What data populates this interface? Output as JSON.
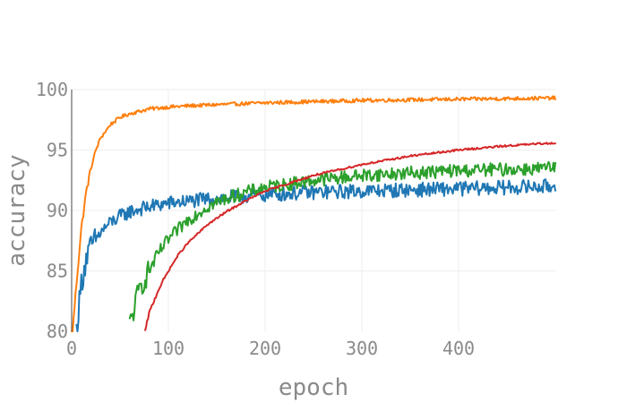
{
  "chart_data": {
    "type": "line",
    "title": "",
    "xlabel": "epoch",
    "ylabel": "accuracy",
    "xlim": [
      0,
      500
    ],
    "ylim": [
      80,
      100
    ],
    "x_ticks": [
      0,
      100,
      200,
      300,
      400
    ],
    "y_ticks": [
      80,
      85,
      90,
      95,
      100
    ],
    "grid": true,
    "legend": "none",
    "colors": {
      "orange": "#ff7f0e",
      "blue": "#1f77b4",
      "green": "#2ca02c",
      "red": "#d62728",
      "grid": "#eeeeee",
      "text": "#8a8a8a"
    },
    "series": [
      {
        "color": "#ff7f0e",
        "noise": 0.15,
        "x": [
          0,
          5,
          10,
          15,
          20,
          25,
          30,
          40,
          50,
          60,
          70,
          80,
          100,
          120,
          150,
          200,
          250,
          300,
          350,
          400,
          450,
          500
        ],
        "y": [
          79.0,
          84.0,
          88.5,
          91.5,
          93.5,
          95.0,
          96.0,
          97.1,
          97.7,
          98.0,
          98.2,
          98.4,
          98.55,
          98.65,
          98.75,
          98.9,
          99.0,
          99.1,
          99.15,
          99.2,
          99.25,
          99.3
        ]
      },
      {
        "color": "#1f77b4",
        "noise": 0.6,
        "x": [
          5,
          10,
          15,
          20,
          30,
          40,
          50,
          60,
          80,
          100,
          150,
          200,
          250,
          300,
          350,
          400,
          450,
          500
        ],
        "y": [
          80.0,
          84.0,
          86.0,
          87.0,
          88.2,
          89.0,
          89.5,
          89.9,
          90.3,
          90.6,
          91.0,
          91.3,
          91.5,
          91.6,
          91.7,
          91.8,
          91.9,
          92.0
        ]
      },
      {
        "color": "#2ca02c",
        "noise": 0.55,
        "x": [
          60,
          65,
          70,
          80,
          90,
          100,
          120,
          140,
          160,
          180,
          200,
          250,
          300,
          350,
          400,
          450,
          500
        ],
        "y": [
          80.5,
          82.0,
          83.5,
          85.0,
          86.5,
          87.6,
          89.2,
          90.3,
          91.0,
          91.5,
          91.9,
          92.5,
          92.9,
          93.1,
          93.3,
          93.4,
          93.5
        ]
      },
      {
        "color": "#d62728",
        "noise": 0.08,
        "x": [
          76,
          80,
          90,
          100,
          110,
          120,
          140,
          160,
          180,
          200,
          250,
          300,
          350,
          400,
          450,
          500
        ],
        "y": [
          80.0,
          81.5,
          83.5,
          85.0,
          86.3,
          87.3,
          88.8,
          89.9,
          90.8,
          91.6,
          92.9,
          93.8,
          94.5,
          95.0,
          95.35,
          95.6
        ]
      }
    ]
  }
}
